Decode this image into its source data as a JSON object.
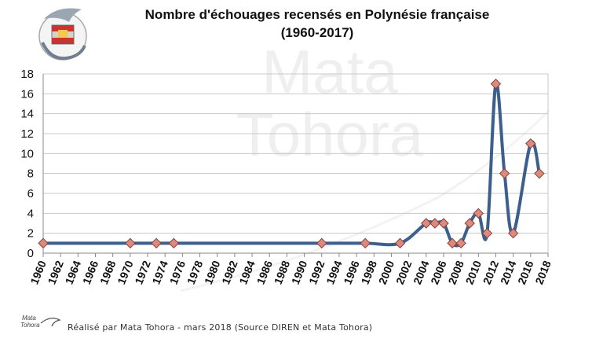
{
  "title_line1": "Nombre d'échouages recensés en Polynésie française",
  "title_line2": "(1960-2017)",
  "watermark": [
    "Mata",
    "Tohora"
  ],
  "footer_text": "Réalisé par Mata Tohora - mars 2018     (Source DIREN et Mata Tohora)",
  "footer_logo_text": [
    "Mata",
    "Tohora"
  ],
  "colors": {
    "line": "#3c5f8c",
    "marker_fill": "#d98b80",
    "marker_stroke": "#8c3b33",
    "grid": "#c8c8c8",
    "axis": "#888888"
  },
  "chart_data": {
    "type": "line",
    "title": "Nombre d'échouages recensés en Polynésie française (1960-2017)",
    "xlim": [
      1960,
      2018
    ],
    "ylim": [
      0,
      18
    ],
    "x_ticks": [
      1960,
      1962,
      1964,
      1966,
      1968,
      1970,
      1972,
      1974,
      1976,
      1978,
      1980,
      1982,
      1984,
      1986,
      1988,
      1990,
      1992,
      1994,
      1996,
      1998,
      2000,
      2002,
      2004,
      2006,
      2008,
      2010,
      2012,
      2014,
      2016,
      2018
    ],
    "y_ticks": [
      0,
      2,
      4,
      6,
      8,
      10,
      12,
      14,
      16,
      18
    ],
    "grid": "horizontal",
    "smooth": true,
    "series": [
      {
        "x": [
          1960,
          1970,
          1973,
          1975,
          1992,
          1997,
          2001,
          2004,
          2005,
          2006,
          2007,
          2008,
          2009,
          2010,
          2011,
          2012,
          2013,
          2014,
          2016,
          2017
        ],
        "y": [
          1,
          1,
          1,
          1,
          1,
          1,
          1,
          3,
          3,
          3,
          1,
          1,
          3,
          4,
          2,
          17,
          8,
          2,
          11,
          8
        ]
      }
    ]
  }
}
